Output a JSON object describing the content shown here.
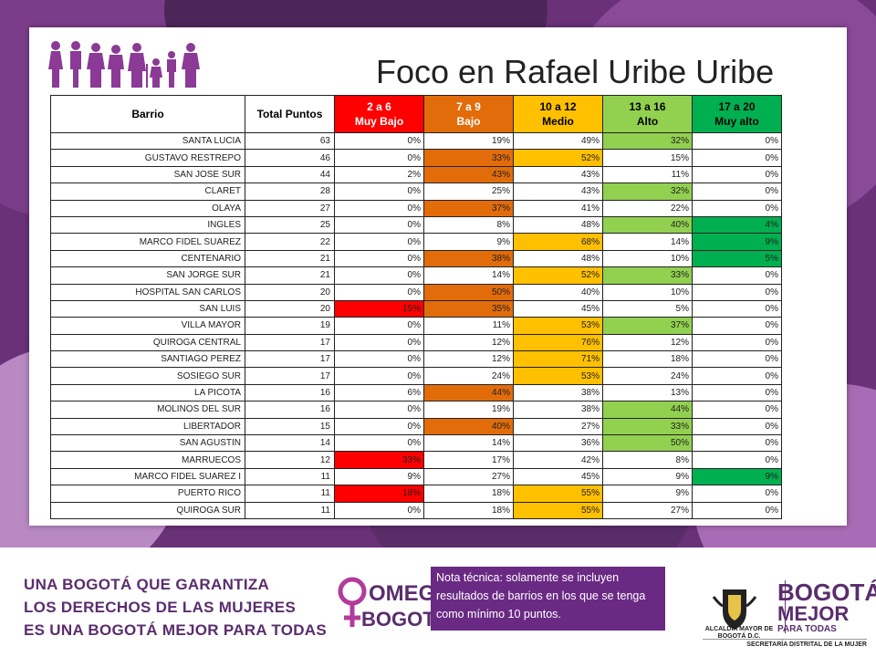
{
  "title": "Foco en Rafael Uribe Uribe",
  "colors": {
    "red": "#ff0000",
    "orange": "#e36c0a",
    "yellow": "#ffc000",
    "lightgreen": "#92d050",
    "green": "#00b050",
    "purple": "#6a3179"
  },
  "table": {
    "headers": [
      {
        "line1": "Barrio",
        "line2": ""
      },
      {
        "line1": "Total Puntos",
        "line2": ""
      },
      {
        "line1": "2 a 6",
        "line2": "Muy Bajo"
      },
      {
        "line1": "7 a 9",
        "line2": "Bajo"
      },
      {
        "line1": "10 a 12",
        "line2": "Medio"
      },
      {
        "line1": "13 a 16",
        "line2": "Alto"
      },
      {
        "line1": "17 a 20",
        "line2": "Muy alto"
      }
    ],
    "rows": [
      {
        "barrio": "SANTA LUCIA",
        "total": "63",
        "v": [
          "0%",
          "19%",
          "49%",
          "32%",
          "0%"
        ],
        "hl": [
          "",
          "",
          "",
          "lightgreen",
          ""
        ]
      },
      {
        "barrio": "GUSTAVO RESTREPO",
        "total": "46",
        "v": [
          "0%",
          "33%",
          "52%",
          "15%",
          "0%"
        ],
        "hl": [
          "",
          "orange",
          "yellow",
          "",
          ""
        ]
      },
      {
        "barrio": "SAN JOSE SUR",
        "total": "44",
        "v": [
          "2%",
          "43%",
          "43%",
          "11%",
          "0%"
        ],
        "hl": [
          "",
          "orange",
          "",
          "",
          ""
        ]
      },
      {
        "barrio": "CLARET",
        "total": "28",
        "v": [
          "0%",
          "25%",
          "43%",
          "32%",
          "0%"
        ],
        "hl": [
          "",
          "",
          "",
          "lightgreen",
          ""
        ]
      },
      {
        "barrio": "OLAYA",
        "total": "27",
        "v": [
          "0%",
          "37%",
          "41%",
          "22%",
          "0%"
        ],
        "hl": [
          "",
          "orange",
          "",
          "",
          ""
        ]
      },
      {
        "barrio": "INGLES",
        "total": "25",
        "v": [
          "0%",
          "8%",
          "48%",
          "40%",
          "4%"
        ],
        "hl": [
          "",
          "",
          "",
          "lightgreen",
          "green"
        ]
      },
      {
        "barrio": "MARCO FIDEL SUAREZ",
        "total": "22",
        "v": [
          "0%",
          "9%",
          "68%",
          "14%",
          "9%"
        ],
        "hl": [
          "",
          "",
          "yellow",
          "",
          "green"
        ]
      },
      {
        "barrio": "CENTENARIO",
        "total": "21",
        "v": [
          "0%",
          "38%",
          "48%",
          "10%",
          "5%"
        ],
        "hl": [
          "",
          "orange",
          "",
          "",
          "green"
        ]
      },
      {
        "barrio": "SAN JORGE SUR",
        "total": "21",
        "v": [
          "0%",
          "14%",
          "52%",
          "33%",
          "0%"
        ],
        "hl": [
          "",
          "",
          "yellow",
          "lightgreen",
          ""
        ]
      },
      {
        "barrio": "HOSPITAL SAN CARLOS",
        "total": "20",
        "v": [
          "0%",
          "50%",
          "40%",
          "10%",
          "0%"
        ],
        "hl": [
          "",
          "orange",
          "",
          "",
          ""
        ]
      },
      {
        "barrio": "SAN LUIS",
        "total": "20",
        "v": [
          "15%",
          "35%",
          "45%",
          "5%",
          "0%"
        ],
        "hl": [
          "red",
          "orange",
          "",
          "",
          ""
        ]
      },
      {
        "barrio": "VILLA MAYOR",
        "total": "19",
        "v": [
          "0%",
          "11%",
          "53%",
          "37%",
          "0%"
        ],
        "hl": [
          "",
          "",
          "yellow",
          "lightgreen",
          ""
        ]
      },
      {
        "barrio": "QUIROGA CENTRAL",
        "total": "17",
        "v": [
          "0%",
          "12%",
          "76%",
          "12%",
          "0%"
        ],
        "hl": [
          "",
          "",
          "yellow",
          "",
          ""
        ]
      },
      {
        "barrio": "SANTIAGO PEREZ",
        "total": "17",
        "v": [
          "0%",
          "12%",
          "71%",
          "18%",
          "0%"
        ],
        "hl": [
          "",
          "",
          "yellow",
          "",
          ""
        ]
      },
      {
        "barrio": "SOSIEGO SUR",
        "total": "17",
        "v": [
          "0%",
          "24%",
          "53%",
          "24%",
          "0%"
        ],
        "hl": [
          "",
          "",
          "yellow",
          "",
          ""
        ]
      },
      {
        "barrio": "LA PICOTA",
        "total": "16",
        "v": [
          "6%",
          "44%",
          "38%",
          "13%",
          "0%"
        ],
        "hl": [
          "",
          "orange",
          "",
          "",
          ""
        ]
      },
      {
        "barrio": "MOLINOS DEL SUR",
        "total": "16",
        "v": [
          "0%",
          "19%",
          "38%",
          "44%",
          "0%"
        ],
        "hl": [
          "",
          "",
          "",
          "lightgreen",
          ""
        ]
      },
      {
        "barrio": "LIBERTADOR",
        "total": "15",
        "v": [
          "0%",
          "40%",
          "27%",
          "33%",
          "0%"
        ],
        "hl": [
          "",
          "orange",
          "",
          "lightgreen",
          ""
        ]
      },
      {
        "barrio": "SAN AGUSTIN",
        "total": "14",
        "v": [
          "0%",
          "14%",
          "36%",
          "50%",
          "0%"
        ],
        "hl": [
          "",
          "",
          "",
          "lightgreen",
          ""
        ]
      },
      {
        "barrio": "MARRUECOS",
        "total": "12",
        "v": [
          "33%",
          "17%",
          "42%",
          "8%",
          "0%"
        ],
        "hl": [
          "red",
          "",
          "",
          "",
          ""
        ]
      },
      {
        "barrio": "MARCO FIDEL SUAREZ I",
        "total": "11",
        "v": [
          "9%",
          "27%",
          "45%",
          "9%",
          "9%"
        ],
        "hl": [
          "",
          "",
          "",
          "",
          "green"
        ]
      },
      {
        "barrio": "PUERTO RICO",
        "total": "11",
        "v": [
          "18%",
          "18%",
          "55%",
          "9%",
          "0%"
        ],
        "hl": [
          "red",
          "",
          "yellow",
          "",
          ""
        ]
      },
      {
        "barrio": "QUIROGA SUR",
        "total": "11",
        "v": [
          "0%",
          "18%",
          "55%",
          "27%",
          "0%"
        ],
        "hl": [
          "",
          "",
          "yellow",
          "",
          ""
        ]
      }
    ]
  },
  "footer": {
    "slogan": [
      "UNA BOGOTÁ QUE GARANTIZA",
      "LOS DERECHOS DE LAS MUJERES",
      "ES UNA BOGOTÁ MEJOR PARA TODAS"
    ],
    "omeg_line1": "OMEG",
    "omeg_line2": "BOGOTÁ",
    "note": "Nota técnica: solamente se incluyen resultados de barrios en los que se tenga como mínimo 10 puntos.",
    "alcaldia": "ALCALDÍA MAYOR DE BOGOTÁ D.C.",
    "brand_l1": "BOGOTÁ",
    "brand_l2": "MEJOR",
    "brand_l3": "PARA TODAS",
    "secretaria": "SECRETARÍA DISTRITAL DE LA MUJER"
  }
}
